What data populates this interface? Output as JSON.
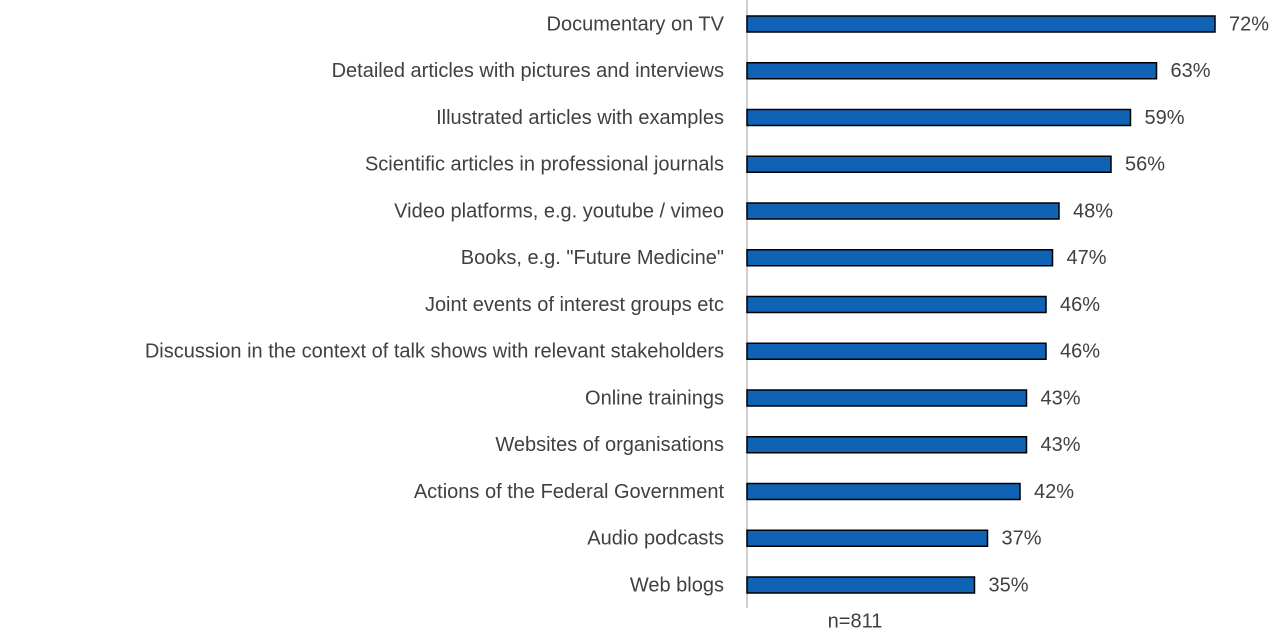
{
  "chart_data": {
    "type": "bar",
    "orientation": "horizontal",
    "categories": [
      "Documentary on TV",
      "Detailed articles with pictures and interviews",
      "Illustrated articles with examples",
      "Scientific articles in professional journals",
      "Video platforms, e.g. youtube / vimeo",
      "Books, e.g. \"Future Medicine\"",
      "Joint events of interest groups etc",
      "Discussion in the context of talk shows with relevant stakeholders",
      "Online trainings",
      "Websites of organisations",
      "Actions of the Federal Government",
      "Audio podcasts",
      "Web blogs"
    ],
    "values": [
      72,
      63,
      59,
      56,
      48,
      47,
      46,
      46,
      43,
      43,
      42,
      37,
      35
    ],
    "value_labels": [
      "72%",
      "63%",
      "59%",
      "56%",
      "48%",
      "47%",
      "46%",
      "46%",
      "43%",
      "43%",
      "42%",
      "37%",
      "35%"
    ],
    "color": "#0f62b4",
    "xlim": [
      0,
      82
    ],
    "annotation": "n=811"
  }
}
